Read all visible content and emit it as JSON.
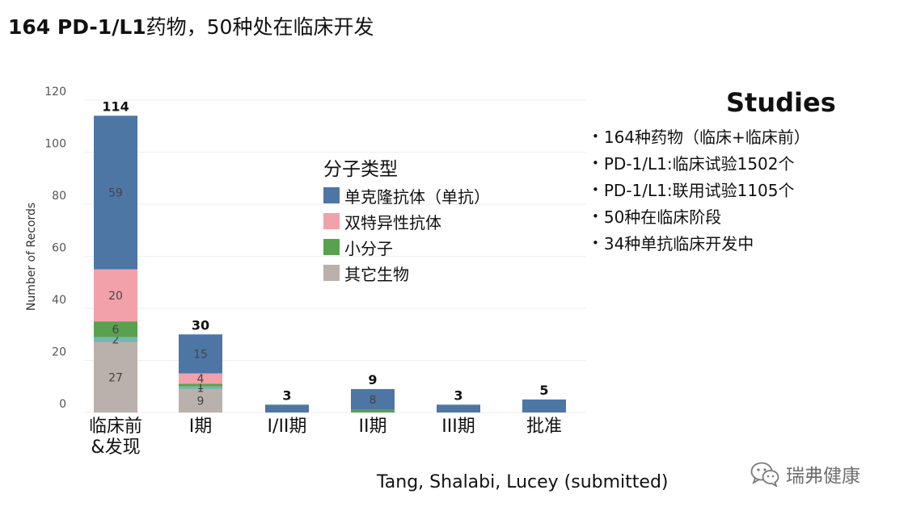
{
  "slide": {
    "title_strong": "164 PD-1/L1",
    "title_rest": "药物，50种处在临床开发"
  },
  "studies": {
    "heading": "Studies",
    "bullets": [
      "164种药物（临床+临床前）",
      "PD-1/L1:临床试验1502个",
      "PD-1/L1:联用试验1105个",
      "50种在临床阶段",
      "34种单抗临床开发中"
    ]
  },
  "citation": "Tang, Shalabi, Lucey (submitted)",
  "watermark": {
    "text": "瑞弗健康",
    "icon": "wechat-icon"
  },
  "colors": {
    "mab": "#4e76a5",
    "bispecific": "#f2a1aa",
    "small_molecule": "#59a14f",
    "teal": "#76b7b2",
    "other_bio": "#bab0ac"
  },
  "chart_data": {
    "type": "bar",
    "stacked": true,
    "ylabel": "Number of Records",
    "ylim": [
      0,
      120
    ],
    "yticks": [
      0,
      20,
      40,
      60,
      80,
      100,
      120
    ],
    "grid": true,
    "legend_title": "分子类型",
    "legend_placement": "center",
    "categories": [
      "临床前\n&发现",
      "I期",
      "I/II期",
      "II期",
      "III期",
      "批准"
    ],
    "totals": [
      114,
      30,
      3,
      9,
      3,
      5
    ],
    "series": [
      {
        "name": "其它生物",
        "color_key": "other_bio",
        "values": [
          27,
          9,
          0,
          0,
          0,
          0
        ],
        "labels": [
          "27",
          "9",
          "",
          "",
          "",
          ""
        ]
      },
      {
        "name": "",
        "color_key": "teal",
        "values": [
          2,
          1,
          0,
          0,
          0,
          0
        ],
        "labels": [
          "2",
          "1",
          "",
          "",
          "",
          ""
        ]
      },
      {
        "name": "小分子",
        "color_key": "small_molecule",
        "values": [
          6,
          1,
          0,
          1,
          0,
          0
        ],
        "labels": [
          "6",
          "1",
          "",
          "",
          "",
          ""
        ]
      },
      {
        "name": "双特异性抗体",
        "color_key": "bispecific",
        "values": [
          20,
          4,
          0,
          0,
          0,
          0
        ],
        "labels": [
          "20",
          "4",
          "",
          "",
          "",
          ""
        ]
      },
      {
        "name": "单克隆抗体（单抗）",
        "color_key": "mab",
        "values": [
          59,
          15,
          3,
          8,
          3,
          5
        ],
        "labels": [
          "59",
          "15",
          "",
          "8",
          "",
          ""
        ]
      }
    ],
    "legend_entries": [
      {
        "label": "单克隆抗体（单抗）",
        "color_key": "mab"
      },
      {
        "label": "双特异性抗体",
        "color_key": "bispecific"
      },
      {
        "label": "小分子",
        "color_key": "small_molecule"
      },
      {
        "label": "其它生物",
        "color_key": "other_bio"
      }
    ]
  }
}
